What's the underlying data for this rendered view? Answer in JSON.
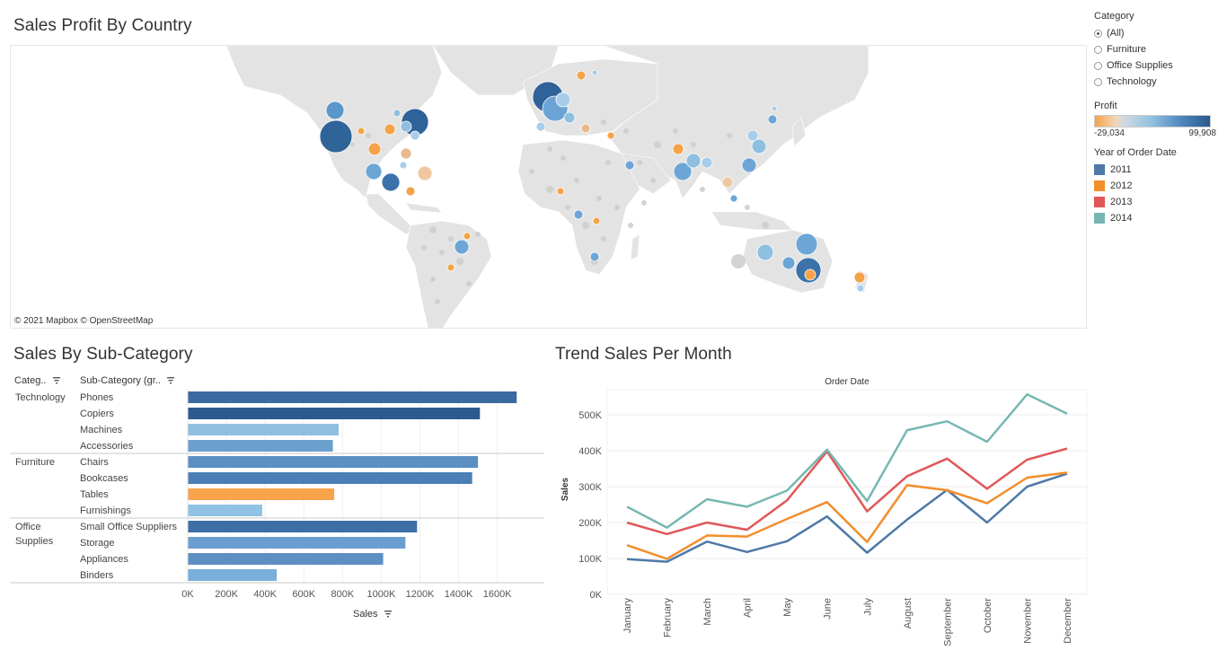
{
  "map": {
    "title": "Sales Profit By Country",
    "attribution": "© 2021 Mapbox  © OpenStreetMap"
  },
  "legend": {
    "category_title": "Category",
    "category_options": [
      {
        "label": "(All)",
        "selected": true
      },
      {
        "label": "Furniture",
        "selected": false
      },
      {
        "label": "Office Supplies",
        "selected": false
      },
      {
        "label": "Technology",
        "selected": false
      }
    ],
    "profit_title": "Profit",
    "profit_min": "-29,034",
    "profit_max": "99,908",
    "year_title": "Year of Order Date",
    "years": [
      {
        "label": "2011",
        "color": "#4e79a7"
      },
      {
        "label": "2012",
        "color": "#f28e2b"
      },
      {
        "label": "2013",
        "color": "#e15759"
      },
      {
        "label": "2014",
        "color": "#76b7b2"
      }
    ]
  },
  "bar_section": {
    "title": "Sales By Sub-Category",
    "col_category": "Categ..",
    "col_subcategory": "Sub-Category (gr..",
    "axis_title": "Sales"
  },
  "line_section": {
    "title": "Trend Sales Per Month",
    "top_title": "Order Date",
    "y_title": "Sales"
  },
  "chart_data": [
    {
      "type": "bar",
      "orientation": "horizontal",
      "groups": [
        {
          "category": "Technology",
          "items": [
            {
              "label": "Phones",
              "value": 1700000,
              "color": "#3a6a9f"
            },
            {
              "label": "Copiers",
              "value": 1510000,
              "color": "#2c5a8e"
            },
            {
              "label": "Machines",
              "value": 780000,
              "color": "#8fbfe0"
            },
            {
              "label": "Accessories",
              "value": 750000,
              "color": "#6a9fce"
            }
          ]
        },
        {
          "category": "Furniture",
          "items": [
            {
              "label": "Chairs",
              "value": 1500000,
              "color": "#5b8fc4"
            },
            {
              "label": "Bookcases",
              "value": 1470000,
              "color": "#4b7fb6"
            },
            {
              "label": "Tables",
              "value": 757000,
              "color": "#f9a44c"
            },
            {
              "label": "Furnishings",
              "value": 385000,
              "color": "#8fc2e4"
            }
          ]
        },
        {
          "category": "Office Supplies",
          "category_lines": [
            "Office",
            "Supplies"
          ],
          "items": [
            {
              "label": "Small Office Suppliers",
              "value": 1185000,
              "color": "#3d6fa6"
            },
            {
              "label": "Storage",
              "value": 1125000,
              "color": "#6a9ed0"
            },
            {
              "label": "Appliances",
              "value": 1010000,
              "color": "#5d8fc4"
            },
            {
              "label": "Binders",
              "value": 460000,
              "color": "#7aaedb"
            }
          ]
        }
      ],
      "xlabel": "Sales",
      "xlim": [
        0,
        1750000
      ],
      "xticks": [
        0,
        200000,
        400000,
        600000,
        800000,
        1000000,
        1200000,
        1400000,
        1600000
      ],
      "xtick_labels": [
        "0K",
        "200K",
        "400K",
        "600K",
        "800K",
        "1000K",
        "1200K",
        "1400K",
        "1600K"
      ]
    },
    {
      "type": "line",
      "title": "Order Date",
      "ylabel": "Sales",
      "x": [
        "January",
        "February",
        "March",
        "April",
        "May",
        "June",
        "July",
        "August",
        "September",
        "October",
        "November",
        "December"
      ],
      "ylim": [
        0,
        570000
      ],
      "yticks": [
        0,
        100000,
        200000,
        300000,
        400000,
        500000
      ],
      "ytick_labels": [
        "0K",
        "100K",
        "200K",
        "300K",
        "400K",
        "500K"
      ],
      "series": [
        {
          "name": "2011",
          "color": "#4e79a7",
          "values": [
            98000,
            91000,
            147000,
            118000,
            148000,
            217000,
            116000,
            208000,
            291000,
            200000,
            300000,
            336000
          ]
        },
        {
          "name": "2012",
          "color": "#f28e2b",
          "values": [
            137000,
            99000,
            164000,
            161000,
            210000,
            257000,
            146000,
            304000,
            290000,
            254000,
            325000,
            339000
          ]
        },
        {
          "name": "2013",
          "color": "#e15759",
          "values": [
            200000,
            168000,
            200000,
            180000,
            262000,
            398000,
            231000,
            329000,
            378000,
            294000,
            375000,
            406000
          ]
        },
        {
          "name": "2014",
          "color": "#76b7b2",
          "values": [
            244000,
            186000,
            265000,
            244000,
            289000,
            403000,
            260000,
            457000,
            482000,
            425000,
            557000,
            503000
          ]
        }
      ]
    }
  ]
}
